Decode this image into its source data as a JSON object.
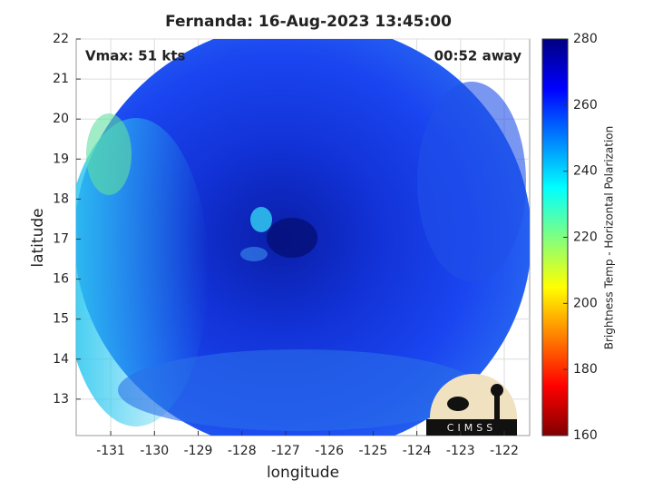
{
  "chart_data": {
    "type": "map",
    "title": "Fernanda: 16-Aug-2023 13:45:00",
    "xlabel": "longitude",
    "ylabel": "latitude",
    "annotations": [
      "Vmax: 51 kts",
      "00:52 away"
    ],
    "xlim": [
      -131.79,
      -121.42
    ],
    "ylim": [
      12.09,
      22
    ],
    "xticks": [
      -131,
      -130,
      -129,
      -128,
      -127,
      -126,
      -125,
      -124,
      -123,
      -122
    ],
    "yticks": [
      13,
      14,
      15,
      16,
      17,
      18,
      19,
      20,
      21,
      22
    ],
    "grid": true,
    "colorbar": {
      "label": "Brightness Temp - Horizontal Polarization",
      "clim": [
        160,
        280
      ],
      "ticks": [
        160,
        180,
        200,
        220,
        240,
        260,
        280
      ],
      "colormap": [
        "#800000",
        "#ff0000",
        "#ff8000",
        "#ffff00",
        "#80ff80",
        "#00ffff",
        "#0080ff",
        "#0000ff",
        "#000080"
      ]
    },
    "logo": "CIMSS"
  }
}
